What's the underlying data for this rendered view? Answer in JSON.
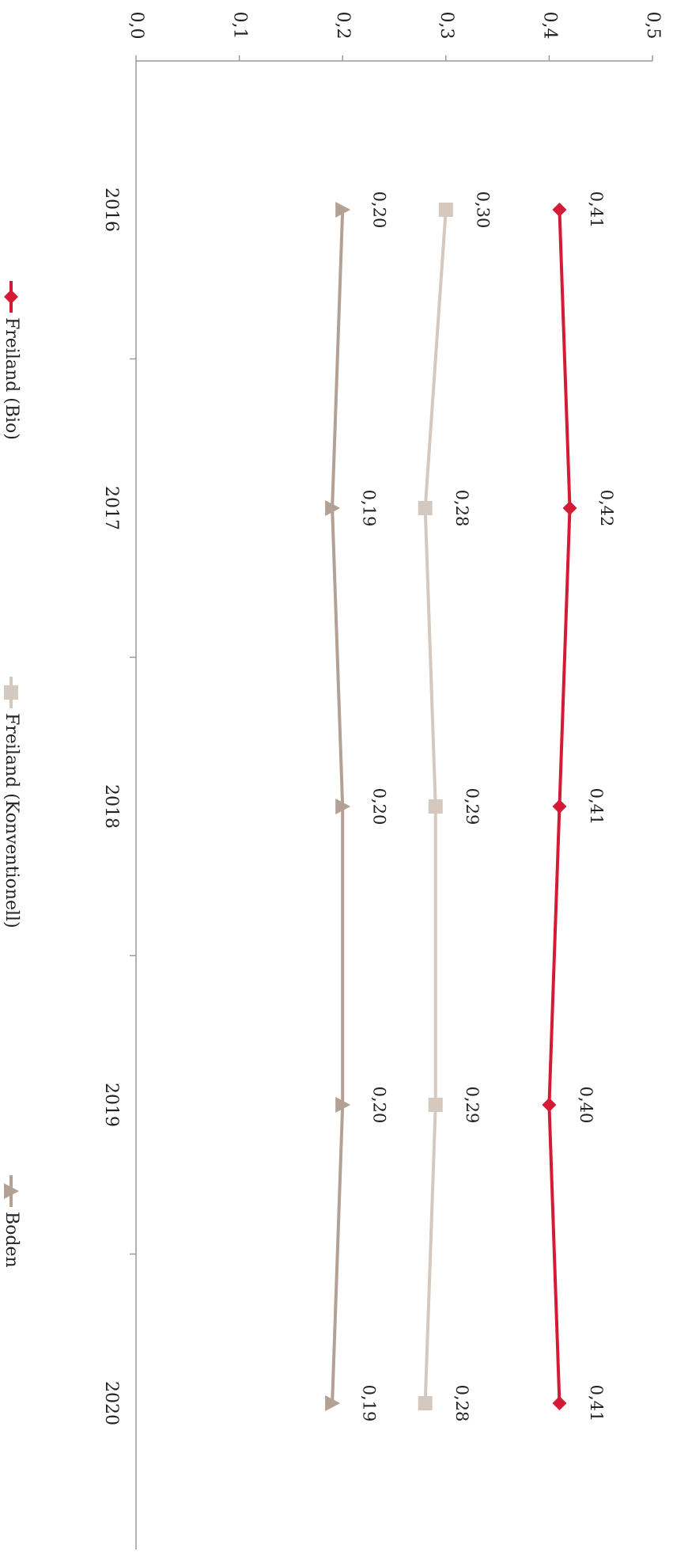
{
  "chart_data": {
    "type": "line",
    "orientation": "rotated-90-clockwise",
    "categories": [
      "2016",
      "2017",
      "2018",
      "2019",
      "2020"
    ],
    "ylim": [
      0,
      0.5
    ],
    "ticks": [
      "0,0",
      "0,1",
      "0,2",
      "0,3",
      "0,4",
      "0,5"
    ],
    "tick_values": [
      0,
      0.1,
      0.2,
      0.3,
      0.4,
      0.5
    ],
    "grid": false,
    "legend_position": "bottom",
    "series": [
      {
        "name": "Freiland (Bio)",
        "color": "#d51a36",
        "marker": "diamond",
        "values": [
          0.41,
          0.42,
          0.41,
          0.4,
          0.41
        ],
        "labels": [
          "0,41",
          "0,42",
          "0,41",
          "0,40",
          "0,41"
        ]
      },
      {
        "name": "Freiland (Konventionell)",
        "color": "#d4c8bf",
        "marker": "square",
        "values": [
          0.3,
          0.28,
          0.29,
          0.29,
          0.28
        ],
        "labels": [
          "0,30",
          "0,28",
          "0,29",
          "0,29",
          "0,28"
        ]
      },
      {
        "name": "Boden",
        "color": "#b3a195",
        "marker": "triangle",
        "values": [
          0.2,
          0.19,
          0.2,
          0.2,
          0.19
        ],
        "labels": [
          "0,20",
          "0,19",
          "0,20",
          "0,20",
          "0,19"
        ]
      }
    ]
  }
}
